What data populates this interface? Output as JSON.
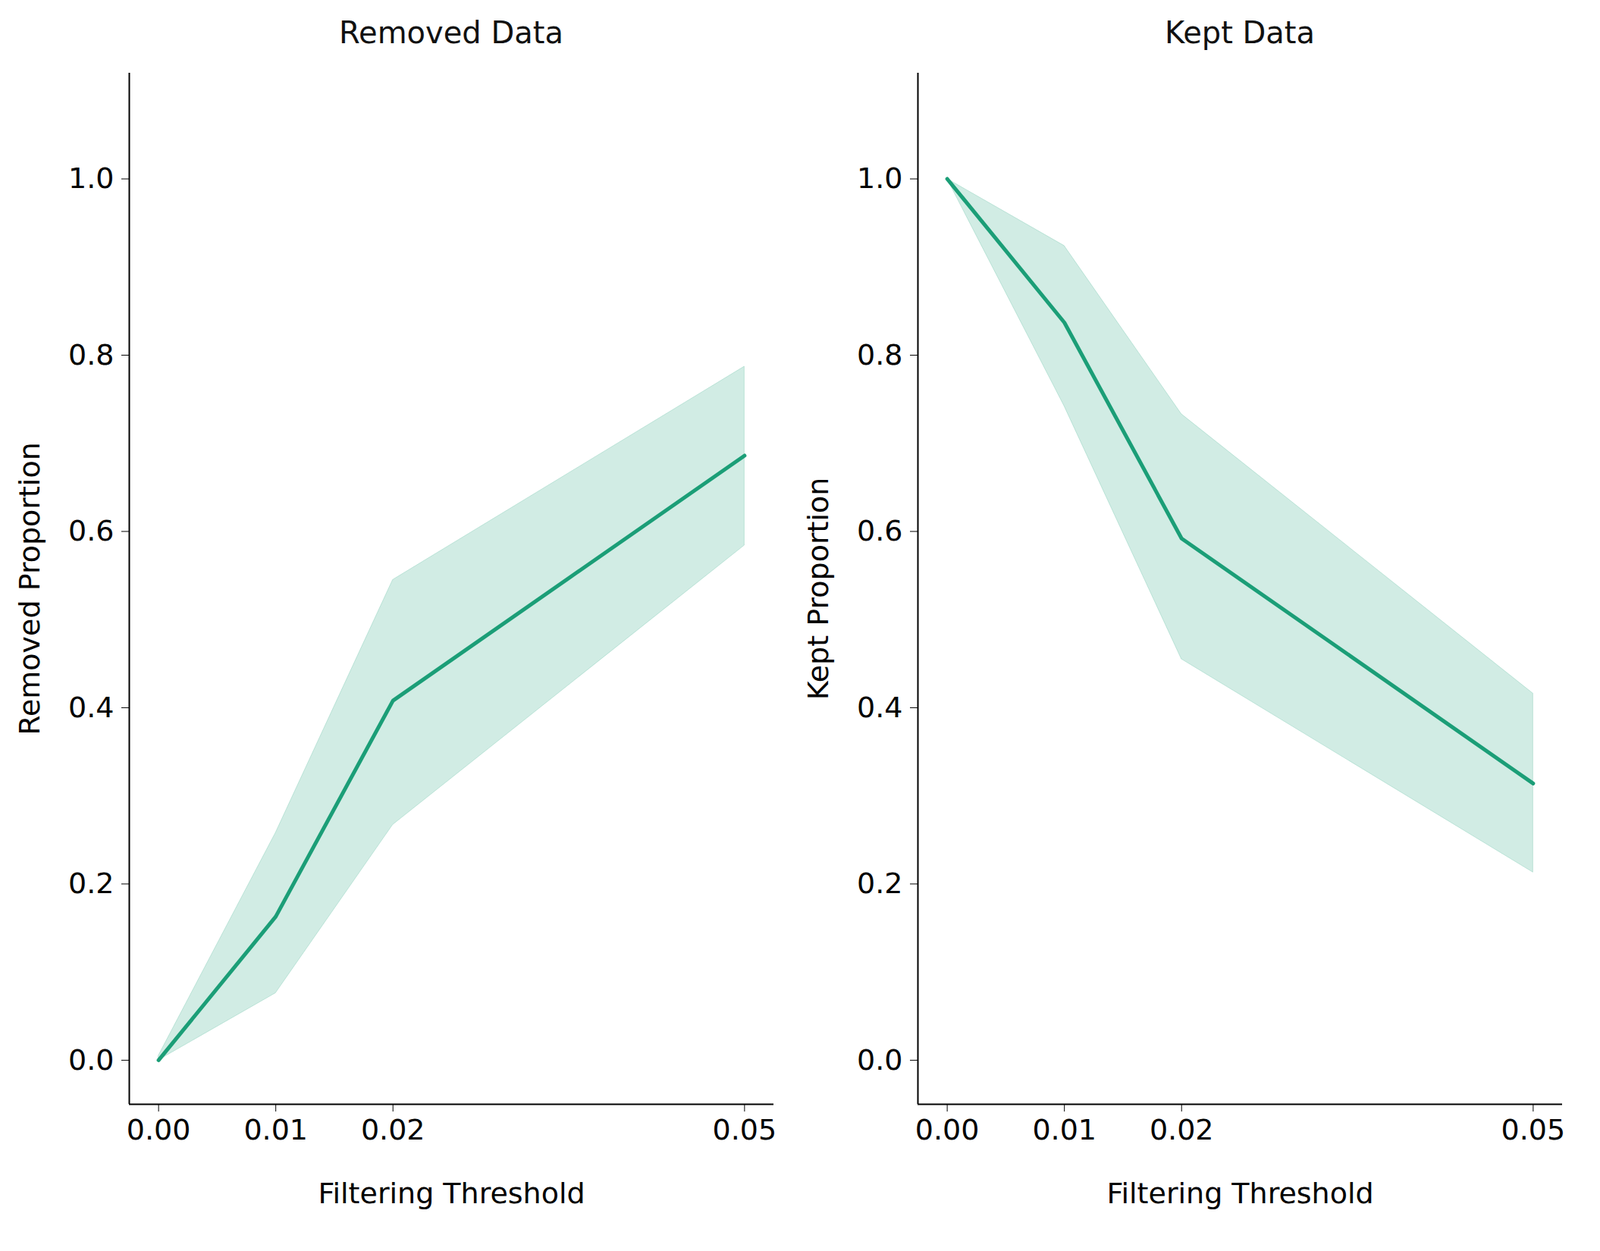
{
  "chart_data": [
    {
      "type": "line",
      "title": "Removed Data",
      "x_label": "Filtering Threshold",
      "y_label": "Removed Proportion",
      "x": [
        0,
        0.01,
        0.02,
        0.05
      ],
      "series": [
        {
          "name": "Removed Proportion",
          "color": "#1b9e77",
          "marker": "none",
          "line_style": "solid",
          "values": [
            0,
            0.163,
            0.408,
            0.686
          ],
          "lower": [
            0,
            0.076,
            0.267,
            0.584
          ],
          "upper": [
            0.005,
            0.258,
            0.545,
            0.787
          ]
        }
      ],
      "xlim": [
        -0.0025,
        0.0525
      ],
      "xticks": [
        {
          "value": 0,
          "label": "0.00"
        },
        {
          "value": 0.01,
          "label": "0.01"
        },
        {
          "value": 0.02,
          "label": "0.02"
        },
        {
          "value": 0.05,
          "label": "0.05"
        }
      ],
      "ylim": [
        -0.05,
        1.12
      ],
      "yticks": [
        {
          "value": 0,
          "label": "0.0"
        },
        0.2,
        0.4,
        0.6,
        0.8,
        {
          "value": 1,
          "label": "1.0"
        }
      ],
      "grid": false
    },
    {
      "type": "line",
      "title": "Kept Data",
      "x_label": "Filtering Threshold",
      "y_label": "Kept Proportion",
      "x": [
        0,
        0.01,
        0.02,
        0.05
      ],
      "series": [
        {
          "name": "Kept Proportion",
          "color": "#1b9e77",
          "marker": "none",
          "line_style": "solid",
          "values": [
            1,
            0.837,
            0.592,
            0.314
          ],
          "lower": [
            1,
            0.742,
            0.455,
            0.213
          ],
          "upper": [
            1,
            0.924,
            0.733,
            0.416
          ]
        }
      ],
      "xlim": [
        -0.0025,
        0.0525
      ],
      "xticks": [
        {
          "value": 0,
          "label": "0.00"
        },
        {
          "value": 0.01,
          "label": "0.01"
        },
        {
          "value": 0.02,
          "label": "0.02"
        },
        {
          "value": 0.05,
          "label": "0.05"
        }
      ],
      "ylim": [
        -0.05,
        1.12
      ],
      "yticks": [
        {
          "value": 0,
          "label": "0.0"
        },
        0.2,
        0.4,
        0.6,
        0.8,
        {
          "value": 1,
          "label": "1.0"
        }
      ],
      "grid": false
    }
  ]
}
